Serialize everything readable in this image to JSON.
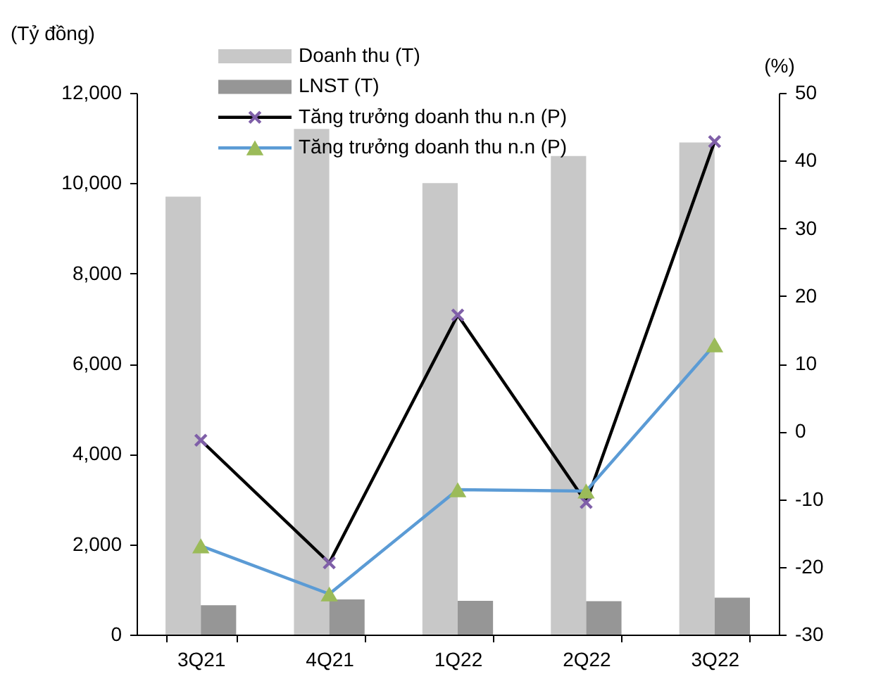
{
  "chart_data": {
    "type": "bar",
    "ylabel": "(Tỷ đồng)",
    "y2label": "(%)",
    "categories": [
      "3Q21",
      "4Q21",
      "1Q22",
      "2Q22",
      "3Q22"
    ],
    "series": [
      {
        "name": "Doanh thu (T)",
        "color": "#c8c8c8",
        "values": [
          9700,
          11200,
          10000,
          10600,
          10900
        ]
      },
      {
        "name": "LNST (T)",
        "color": "#969696",
        "values": [
          650,
          780,
          750,
          740,
          820
        ]
      },
      {
        "name": "Tăng trưởng doanh thu n.n (P)",
        "type": "line",
        "axis": "y2",
        "color": "#000000",
        "marker": "cross",
        "colors": [
          "#7f5fa8",
          "#7f5fa8",
          "#7f5fa8",
          "#7f5fa8",
          "#7f5fa8"
        ],
        "values": [
          -1.3,
          -19.4,
          17.2,
          -10.5,
          42.8
        ]
      },
      {
        "name": "Tăng trưởng doanh thu n.n (P)",
        "type": "line",
        "axis": "y2",
        "color": "#5b9bd5",
        "marker": "triangle",
        "colors": [
          "#9bbb59",
          "#9bbb59",
          "#9bbb59",
          "#9bbb59",
          "#9bbb59"
        ],
        "values": [
          -16.9,
          -24.0,
          -8.6,
          -8.8,
          12.8
        ]
      }
    ],
    "ylim": [
      0,
      12000
    ],
    "yticks": [
      0,
      {
        "value": 2000,
        "label": "2,000"
      },
      {
        "value": 4000,
        "label": "4,000"
      },
      {
        "value": 6000,
        "label": "6,000"
      },
      {
        "value": 8000,
        "label": "8,000"
      },
      {
        "value": 10000,
        "label": "10,000"
      },
      {
        "value": 12000,
        "label": "12,000"
      }
    ],
    "y2lim": [
      -30,
      50
    ],
    "y2ticks": [
      -30,
      -20,
      -10,
      0,
      10,
      20,
      30,
      40,
      50
    ],
    "legend": "top"
  }
}
